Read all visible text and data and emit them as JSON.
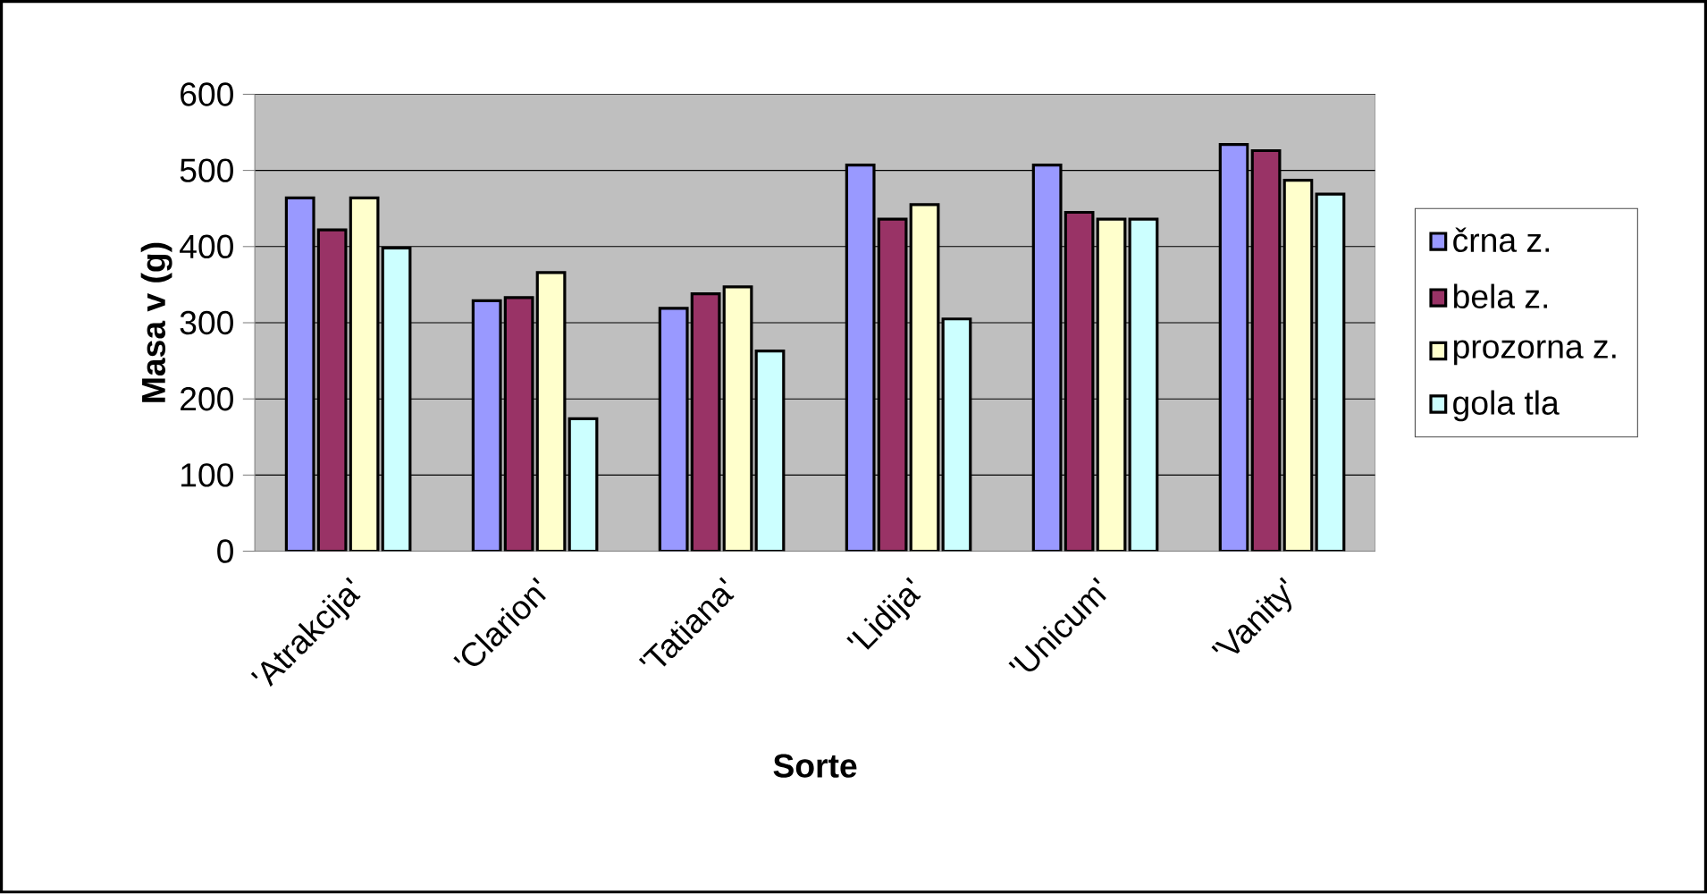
{
  "chart_data": {
    "type": "bar",
    "xlabel": "Sorte",
    "ylabel": "Masa v (g)",
    "categories": [
      "'Atrakcija'",
      "'Clarion'",
      "'Tatiana'",
      "'Lidija'",
      "'Unicum'",
      "'Vanity'"
    ],
    "series": [
      {
        "name": "črna z.",
        "color": "#9999ff",
        "values": [
          464,
          329,
          319,
          507,
          507,
          534
        ]
      },
      {
        "name": "bela z.",
        "color": "#993366",
        "values": [
          422,
          333,
          338,
          436,
          445,
          526
        ]
      },
      {
        "name": "prozorna z.",
        "color": "#ffffcc",
        "values": [
          464,
          366,
          347,
          455,
          436,
          487
        ]
      },
      {
        "name": "gola tla",
        "color": "#ccffff",
        "values": [
          398,
          174,
          263,
          305,
          436,
          469
        ]
      }
    ],
    "ylim": [
      0,
      600
    ],
    "yticks": [
      0,
      100,
      200,
      300,
      400,
      500,
      600
    ],
    "grid": "y",
    "legend": "right"
  }
}
